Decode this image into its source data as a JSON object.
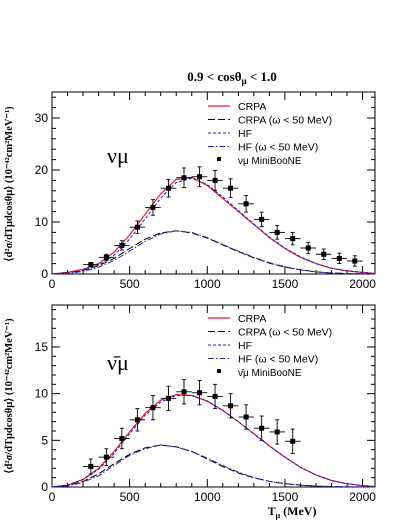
{
  "figure": {
    "title_parts": {
      "pre": "0.9 < cos",
      "theta": "θ",
      "mu": "μ",
      "post": " < 1.0"
    },
    "x_axis_label": {
      "t": "T",
      "mu": "μ",
      "units": " (MeV)"
    },
    "y_axis_label_top": "⟨d²σ/dTμdcosθμ⟩ (10⁻⁴²cm²MeV⁻¹)",
    "y_axis_label_bottom": "⟨d²σ/dTμdcosθμ⟩ (10⁻⁴²cm²MeV⁻¹)",
    "panel_labels": {
      "top": "νμ",
      "bottom": "ν̄μ"
    },
    "legend_top": [
      "CRPA",
      "CRPA (ω < 50 MeV)",
      "HF",
      "HF (ω < 50 MeV)",
      "νμ MiniBooNE"
    ],
    "legend_bottom": [
      "CRPA",
      "CRPA (ω < 50 MeV)",
      "HF",
      "HF (ω < 50 MeV)",
      "ν̄μ MiniBooNE"
    ],
    "colors": {
      "crpa": "#e8192c",
      "crpa_low": "#000000",
      "hf": "#1b1bd6",
      "hf_low": "#2a2a9a",
      "data": "#000000"
    }
  },
  "chart_data": [
    {
      "type": "line",
      "panel": "top",
      "xlim": [
        0,
        2080
      ],
      "ylim": [
        0,
        35
      ],
      "x_ticks": [
        0,
        500,
        1000,
        1500,
        2000
      ],
      "y_ticks": [
        0,
        10,
        20,
        30
      ],
      "series": [
        {
          "name": "CRPA",
          "style": "solid",
          "x": [
            0,
            100,
            200,
            300,
            400,
            500,
            600,
            700,
            800,
            900,
            1000,
            1100,
            1200,
            1300,
            1400,
            1500,
            1600,
            1700,
            1800,
            1900,
            2000,
            2080
          ],
          "y": [
            0,
            0.3,
            0.9,
            2.0,
            4.2,
            7.5,
            11.5,
            15.4,
            18.2,
            18.6,
            17.0,
            14.5,
            12.0,
            9.5,
            7.0,
            4.9,
            3.2,
            2.0,
            1.1,
            0.6,
            0.3,
            0.1
          ]
        },
        {
          "name": "CRPA (ω < 50 MeV)",
          "style": "longdash",
          "x": [
            0,
            100,
            200,
            300,
            400,
            500,
            600,
            700,
            800,
            900,
            1000,
            1100,
            1200,
            1300,
            1400,
            1500,
            1600,
            1700,
            1800,
            1900,
            2000,
            2080
          ],
          "y": [
            0,
            0.2,
            0.7,
            1.6,
            3.0,
            4.9,
            6.7,
            7.9,
            8.3,
            7.9,
            6.9,
            5.6,
            4.3,
            3.1,
            2.1,
            1.3,
            0.8,
            0.4,
            0.2,
            0.1,
            0.05,
            0.02
          ]
        },
        {
          "name": "HF",
          "style": "dashed",
          "x": [
            0,
            100,
            200,
            300,
            400,
            500,
            600,
            700,
            800,
            900,
            1000,
            1100,
            1200,
            1300,
            1400,
            1500,
            1600,
            1700,
            1800,
            1900,
            2000,
            2080
          ],
          "y": [
            0,
            0.2,
            0.7,
            1.7,
            3.6,
            6.7,
            10.6,
            14.6,
            17.6,
            18.4,
            17.2,
            14.8,
            12.2,
            9.6,
            7.1,
            5.0,
            3.3,
            2.0,
            1.1,
            0.6,
            0.3,
            0.1
          ]
        },
        {
          "name": "HF (ω < 50 MeV)",
          "style": "dashdot",
          "x": [
            0,
            100,
            200,
            300,
            400,
            500,
            600,
            700,
            800,
            900,
            1000,
            1100,
            1200,
            1300,
            1400,
            1500,
            1600,
            1700,
            1800,
            1900,
            2000,
            2080
          ],
          "y": [
            0,
            0.1,
            0.5,
            1.3,
            2.6,
            4.4,
            6.3,
            7.7,
            8.3,
            8.0,
            7.0,
            5.7,
            4.4,
            3.2,
            2.2,
            1.4,
            0.8,
            0.4,
            0.2,
            0.1,
            0.05,
            0.02
          ]
        }
      ],
      "data_points": {
        "name": "νμ MiniBooNE",
        "x": [
          250,
          350,
          450,
          550,
          650,
          750,
          850,
          950,
          1050,
          1150,
          1250,
          1350,
          1450,
          1550,
          1650,
          1750,
          1850,
          1950
        ],
        "y": [
          1.8,
          3.2,
          5.5,
          9.0,
          12.8,
          16.5,
          18.5,
          18.7,
          18.0,
          16.5,
          13.5,
          10.5,
          8.0,
          6.8,
          5.0,
          3.8,
          3.0,
          2.5
        ],
        "yerr": [
          0.4,
          0.6,
          0.9,
          1.2,
          1.5,
          1.7,
          1.9,
          1.9,
          1.9,
          1.8,
          1.6,
          1.4,
          1.3,
          1.2,
          1.1,
          1.0,
          1.0,
          1.0
        ],
        "xerr": 50
      }
    },
    {
      "type": "line",
      "panel": "bottom",
      "xlim": [
        0,
        2080
      ],
      "ylim": [
        0,
        19.5
      ],
      "x_ticks": [
        0,
        500,
        1000,
        1500,
        2000
      ],
      "y_ticks": [
        0,
        5,
        10,
        15
      ],
      "series": [
        {
          "name": "CRPA",
          "style": "solid",
          "x": [
            0,
            100,
            200,
            300,
            400,
            500,
            600,
            700,
            800,
            900,
            1000,
            1100,
            1200,
            1300,
            1400,
            1500,
            1600,
            1700,
            1800,
            1900,
            2000,
            2080
          ],
          "y": [
            0,
            0.2,
            0.8,
            2.0,
            3.8,
            5.9,
            7.9,
            9.3,
            9.9,
            9.8,
            9.2,
            8.2,
            7.0,
            5.7,
            4.4,
            3.2,
            2.1,
            1.3,
            0.7,
            0.35,
            0.15,
            0.05
          ]
        },
        {
          "name": "CRPA (ω < 50 MeV)",
          "style": "longdash",
          "x": [
            0,
            100,
            200,
            300,
            400,
            500,
            600,
            700,
            800,
            900,
            1000,
            1100,
            1200,
            1300,
            1400,
            1500,
            1600,
            1700,
            1800,
            1900,
            2000,
            2080
          ],
          "y": [
            0,
            0.15,
            0.6,
            1.4,
            2.5,
            3.5,
            4.2,
            4.5,
            4.3,
            3.8,
            3.0,
            2.2,
            1.5,
            1.0,
            0.6,
            0.35,
            0.2,
            0.1,
            0.05,
            0.02,
            0.01,
            0
          ]
        },
        {
          "name": "HF",
          "style": "dashed",
          "x": [
            0,
            100,
            200,
            300,
            400,
            500,
            600,
            700,
            800,
            900,
            1000,
            1100,
            1200,
            1300,
            1400,
            1500,
            1600,
            1700,
            1800,
            1900,
            2000,
            2080
          ],
          "y": [
            0,
            0.2,
            0.8,
            1.9,
            3.6,
            5.7,
            7.7,
            9.1,
            9.8,
            9.8,
            9.2,
            8.2,
            7.0,
            5.7,
            4.4,
            3.2,
            2.1,
            1.3,
            0.7,
            0.35,
            0.15,
            0.05
          ]
        },
        {
          "name": "HF (ω < 50 MeV)",
          "style": "dashdot",
          "x": [
            0,
            100,
            200,
            300,
            400,
            500,
            600,
            700,
            800,
            900,
            1000,
            1100,
            1200,
            1300,
            1400,
            1500,
            1600,
            1700,
            1800,
            1900,
            2000,
            2080
          ],
          "y": [
            0,
            0.1,
            0.5,
            1.2,
            2.3,
            3.4,
            4.1,
            4.5,
            4.3,
            3.8,
            3.1,
            2.3,
            1.6,
            1.0,
            0.6,
            0.35,
            0.2,
            0.1,
            0.05,
            0.02,
            0.01,
            0
          ]
        }
      ],
      "data_points": {
        "name": "ν̄μ MiniBooNE",
        "x": [
          250,
          350,
          450,
          550,
          650,
          750,
          850,
          950,
          1050,
          1150,
          1250,
          1350,
          1450,
          1550
        ],
        "y": [
          2.2,
          3.2,
          5.2,
          7.2,
          8.5,
          9.5,
          10.2,
          10.1,
          9.7,
          8.7,
          7.5,
          6.3,
          5.9,
          4.9
        ],
        "yerr": [
          0.8,
          0.9,
          1.1,
          1.2,
          1.3,
          1.3,
          1.3,
          1.3,
          1.3,
          1.3,
          1.3,
          1.3,
          1.3,
          1.3
        ],
        "xerr": 50
      }
    }
  ]
}
